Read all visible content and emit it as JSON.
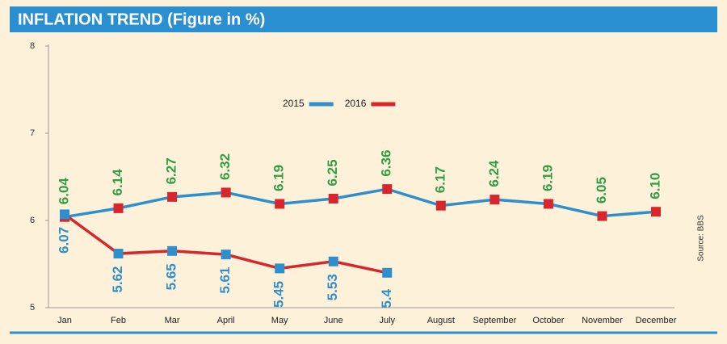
{
  "chart_data": {
    "type": "line",
    "title": "INFLATION TREND (Figure in %)",
    "source": "Source: BBS",
    "categories": [
      "Jan",
      "Feb",
      "Mar",
      "April",
      "May",
      "June",
      "July",
      "August",
      "September",
      "October",
      "November",
      "December"
    ],
    "series": [
      {
        "name": "2015",
        "color": "#2e8fcc",
        "marker_color": "#d7262c",
        "label_color": "#2f9e44",
        "values": [
          6.04,
          6.14,
          6.27,
          6.32,
          6.19,
          6.25,
          6.36,
          6.17,
          6.24,
          6.19,
          6.05,
          6.1
        ],
        "value_labels": [
          "6.04",
          "6.14",
          "6.27",
          "6.32",
          "6.19",
          "6.25",
          "6.36",
          "6.17",
          "6.24",
          "6.19",
          "6.05",
          "6.10"
        ]
      },
      {
        "name": "2016",
        "color": "#d7262c",
        "marker_color": "#2e8fcc",
        "label_color": "#2e8fcc",
        "values": [
          6.07,
          5.62,
          5.65,
          5.61,
          5.45,
          5.53,
          5.4,
          null,
          null,
          null,
          null,
          null
        ],
        "value_labels": [
          "6.07",
          "5.62",
          "5.65",
          "5.61",
          "5.45",
          "5.53",
          "5.4",
          null,
          null,
          null,
          null,
          null
        ]
      }
    ],
    "ylim": [
      5,
      8
    ],
    "yticks": [
      5,
      6,
      7,
      8
    ],
    "grid": false
  }
}
